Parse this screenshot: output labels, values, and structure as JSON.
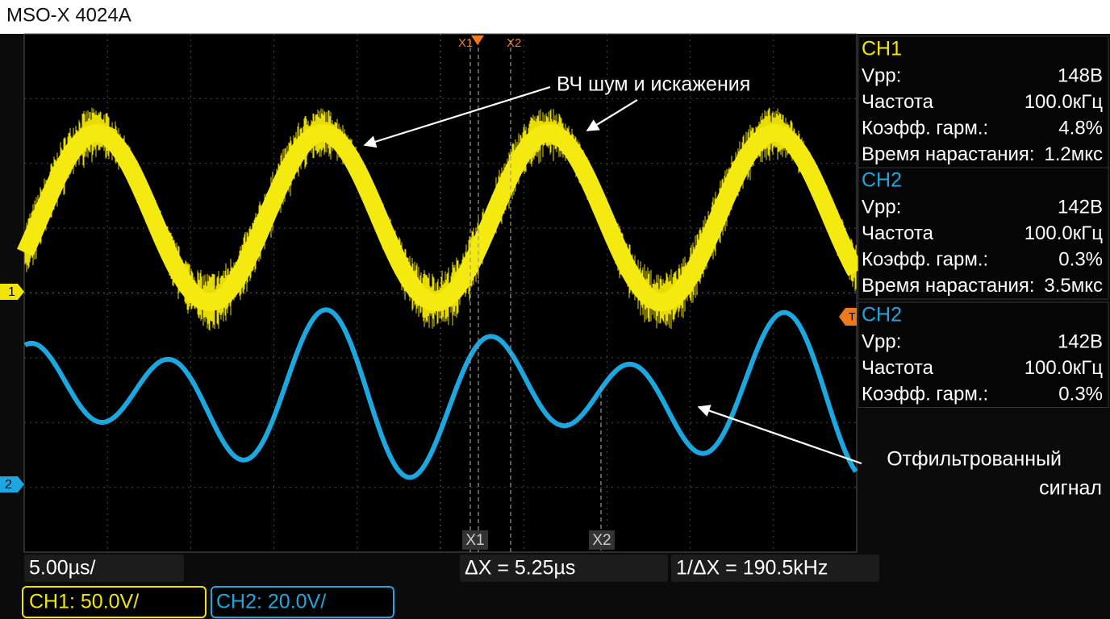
{
  "header": {
    "title": "MSO-X 4024A"
  },
  "cursors": {
    "top": [
      "X1",
      "X2"
    ],
    "bottom": [
      "X1",
      "X2"
    ]
  },
  "channel_markers": {
    "ch1": "1",
    "ch2": "2",
    "trigger": "T"
  },
  "annotations": [
    "ВЧ шум и искажения",
    "Отфильтрованный",
    "сигнал"
  ],
  "measurements": [
    {
      "title": "CH1",
      "rows": [
        [
          "Vpp:",
          "148В"
        ],
        [
          "Частота",
          "100.0кГц"
        ],
        [
          "Коэфф. гарм.:",
          "4.8%"
        ],
        [
          "Время нарастания:",
          "1.2мкс"
        ]
      ]
    },
    {
      "title": "CH2",
      "rows": [
        [
          "Vpp:",
          "142В"
        ],
        [
          "Частота",
          "100.0кГц"
        ],
        [
          "Коэфф. гарм.:",
          "0.3%"
        ],
        [
          "Время нарастания:",
          "3.5мкс"
        ]
      ]
    },
    {
      "title": "CH2",
      "rows": [
        [
          "Vpp:",
          "142В"
        ],
        [
          "Частота",
          "100.0кГц"
        ],
        [
          "Коэфф. гарм.:",
          "0.3%"
        ]
      ]
    }
  ],
  "status": {
    "timebase": "5.00µs/",
    "delta_x": "ΔX = 5.25µs",
    "inv_delta_x": "1/ΔX = 190.5kHz",
    "ch1_scale": "CH1: 50.0V/",
    "ch2_scale": "CH2: 20.0V/"
  }
}
